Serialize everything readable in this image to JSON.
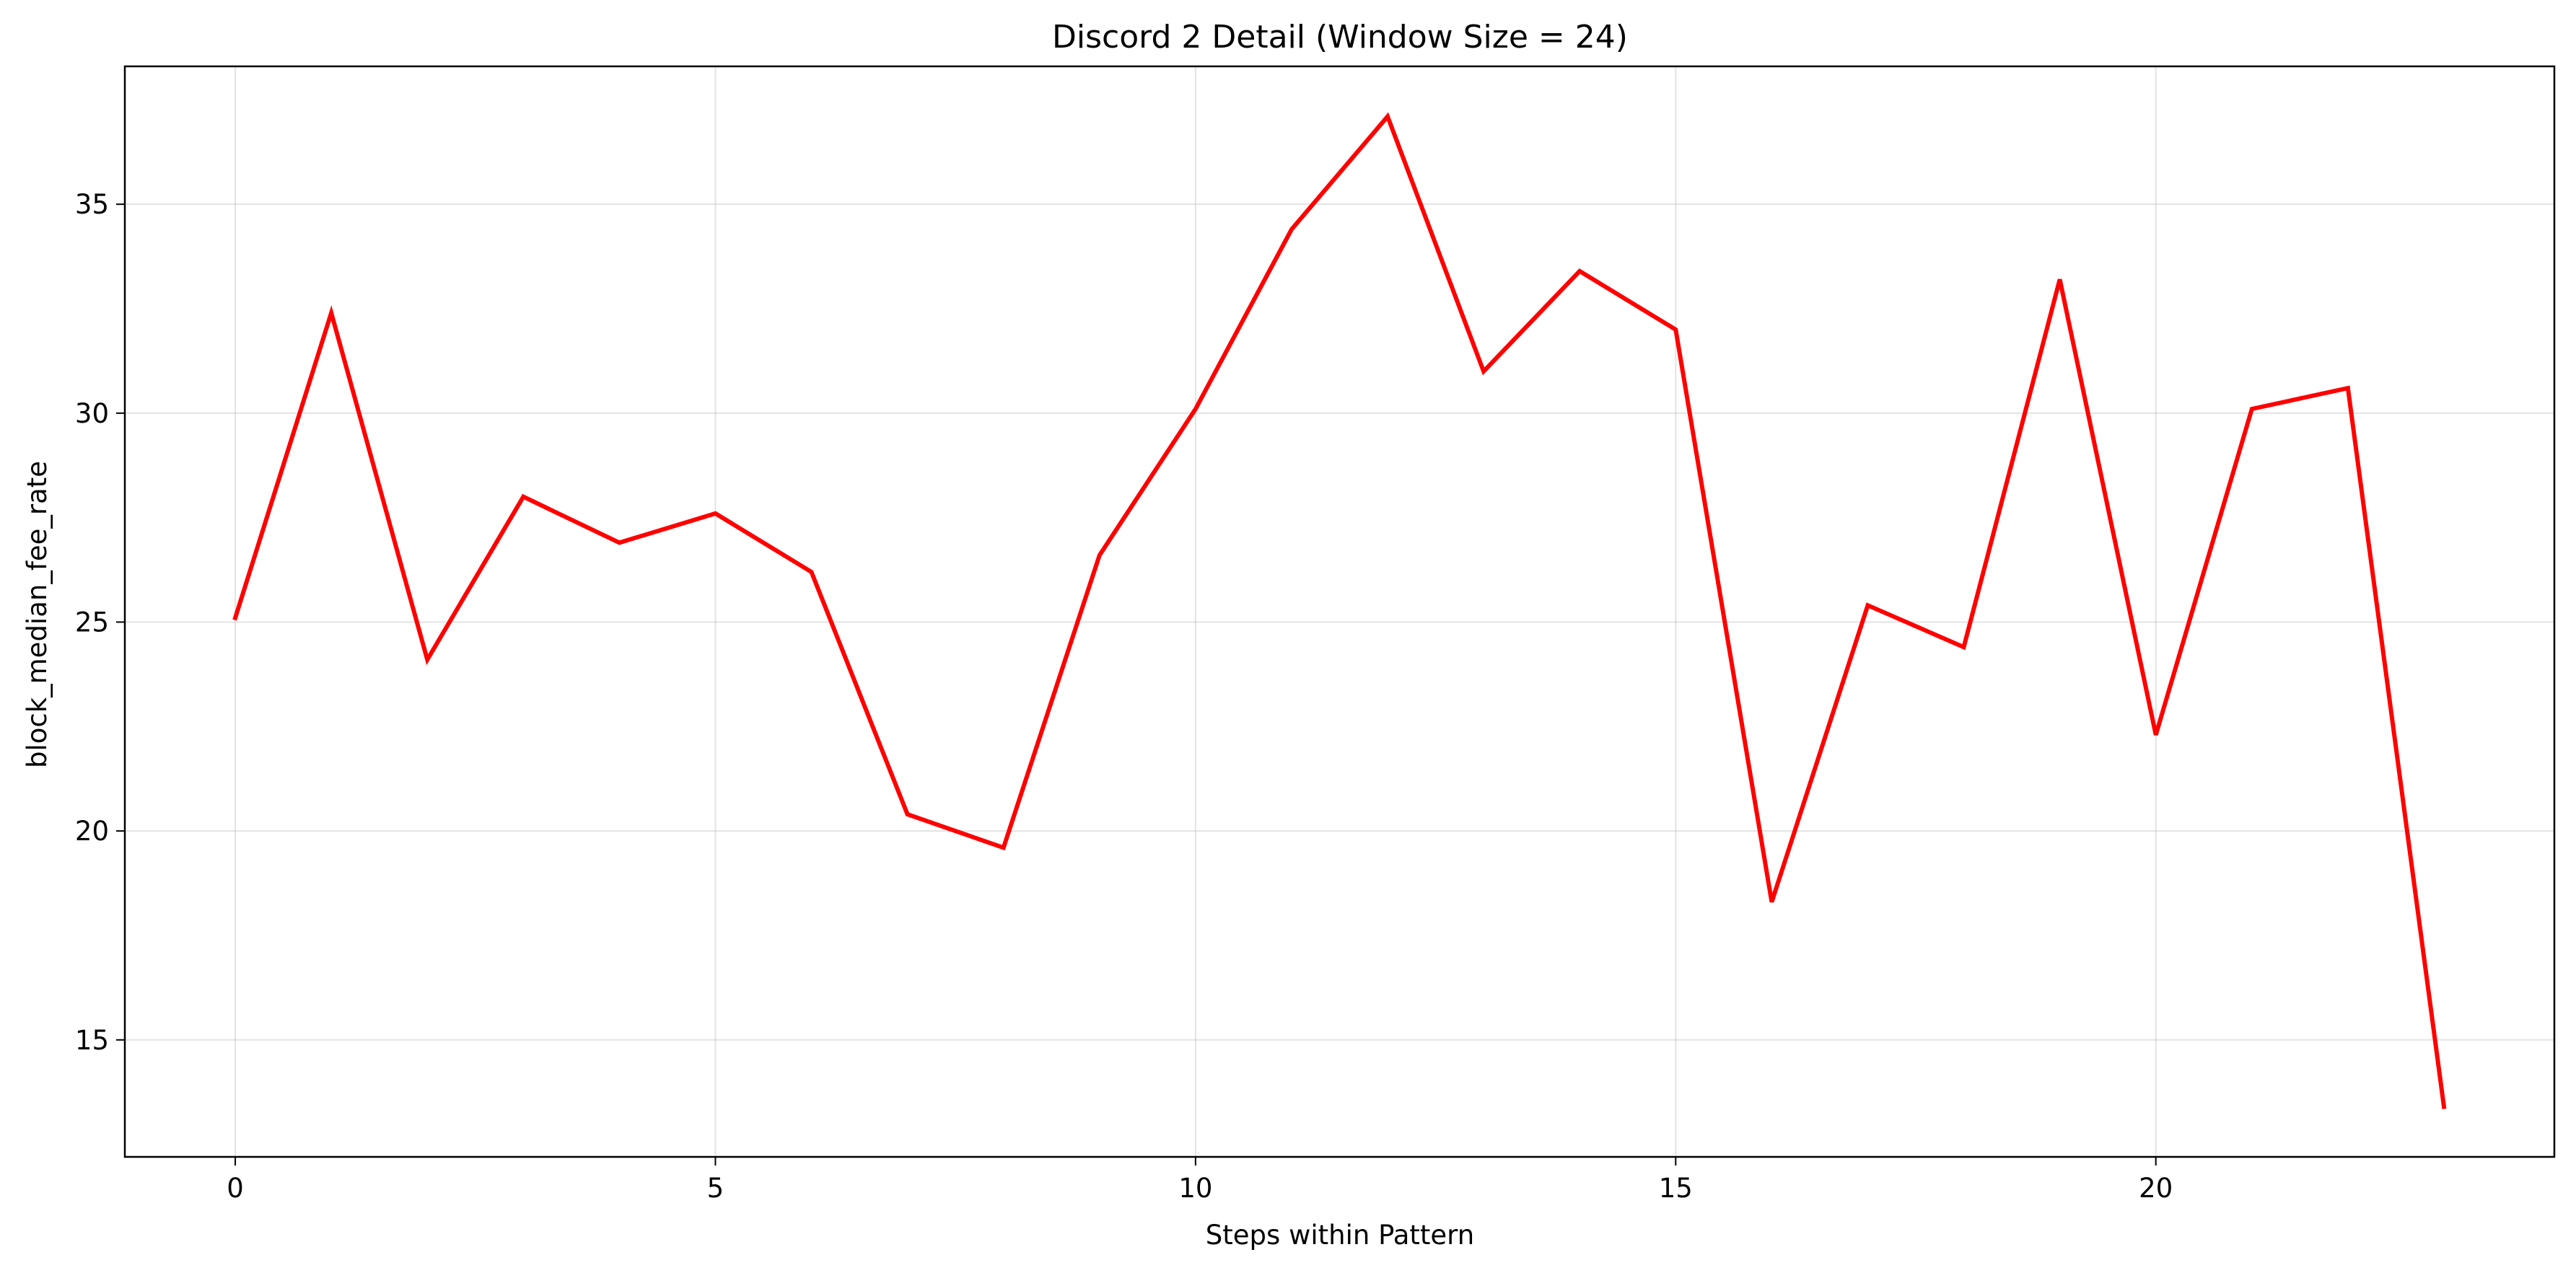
{
  "chart_data": {
    "type": "line",
    "title": "Discord 2 Detail (Window Size = 24)",
    "xlabel": "Steps within Pattern",
    "ylabel": "block_median_fee_rate",
    "xlim": [
      -1.15,
      24.15
    ],
    "ylim": [
      12.2,
      38.3
    ],
    "xticks": [
      0,
      5,
      10,
      15,
      20
    ],
    "yticks": [
      15,
      20,
      25,
      30,
      35
    ],
    "grid": true,
    "legend": "none",
    "series": [
      {
        "color": "#ff0000",
        "x": [
          0,
          1,
          2,
          3,
          4,
          5,
          6,
          7,
          8,
          9,
          10,
          11,
          12,
          13,
          14,
          15,
          16,
          17,
          18,
          19,
          20,
          21,
          22,
          23
        ],
        "y": [
          25.1,
          32.4,
          24.1,
          28.0,
          26.9,
          27.6,
          26.2,
          20.4,
          19.6,
          26.6,
          30.1,
          34.4,
          37.1,
          31.0,
          33.4,
          32.0,
          18.3,
          25.4,
          24.4,
          33.2,
          22.3,
          30.1,
          30.6,
          13.4
        ]
      }
    ]
  }
}
